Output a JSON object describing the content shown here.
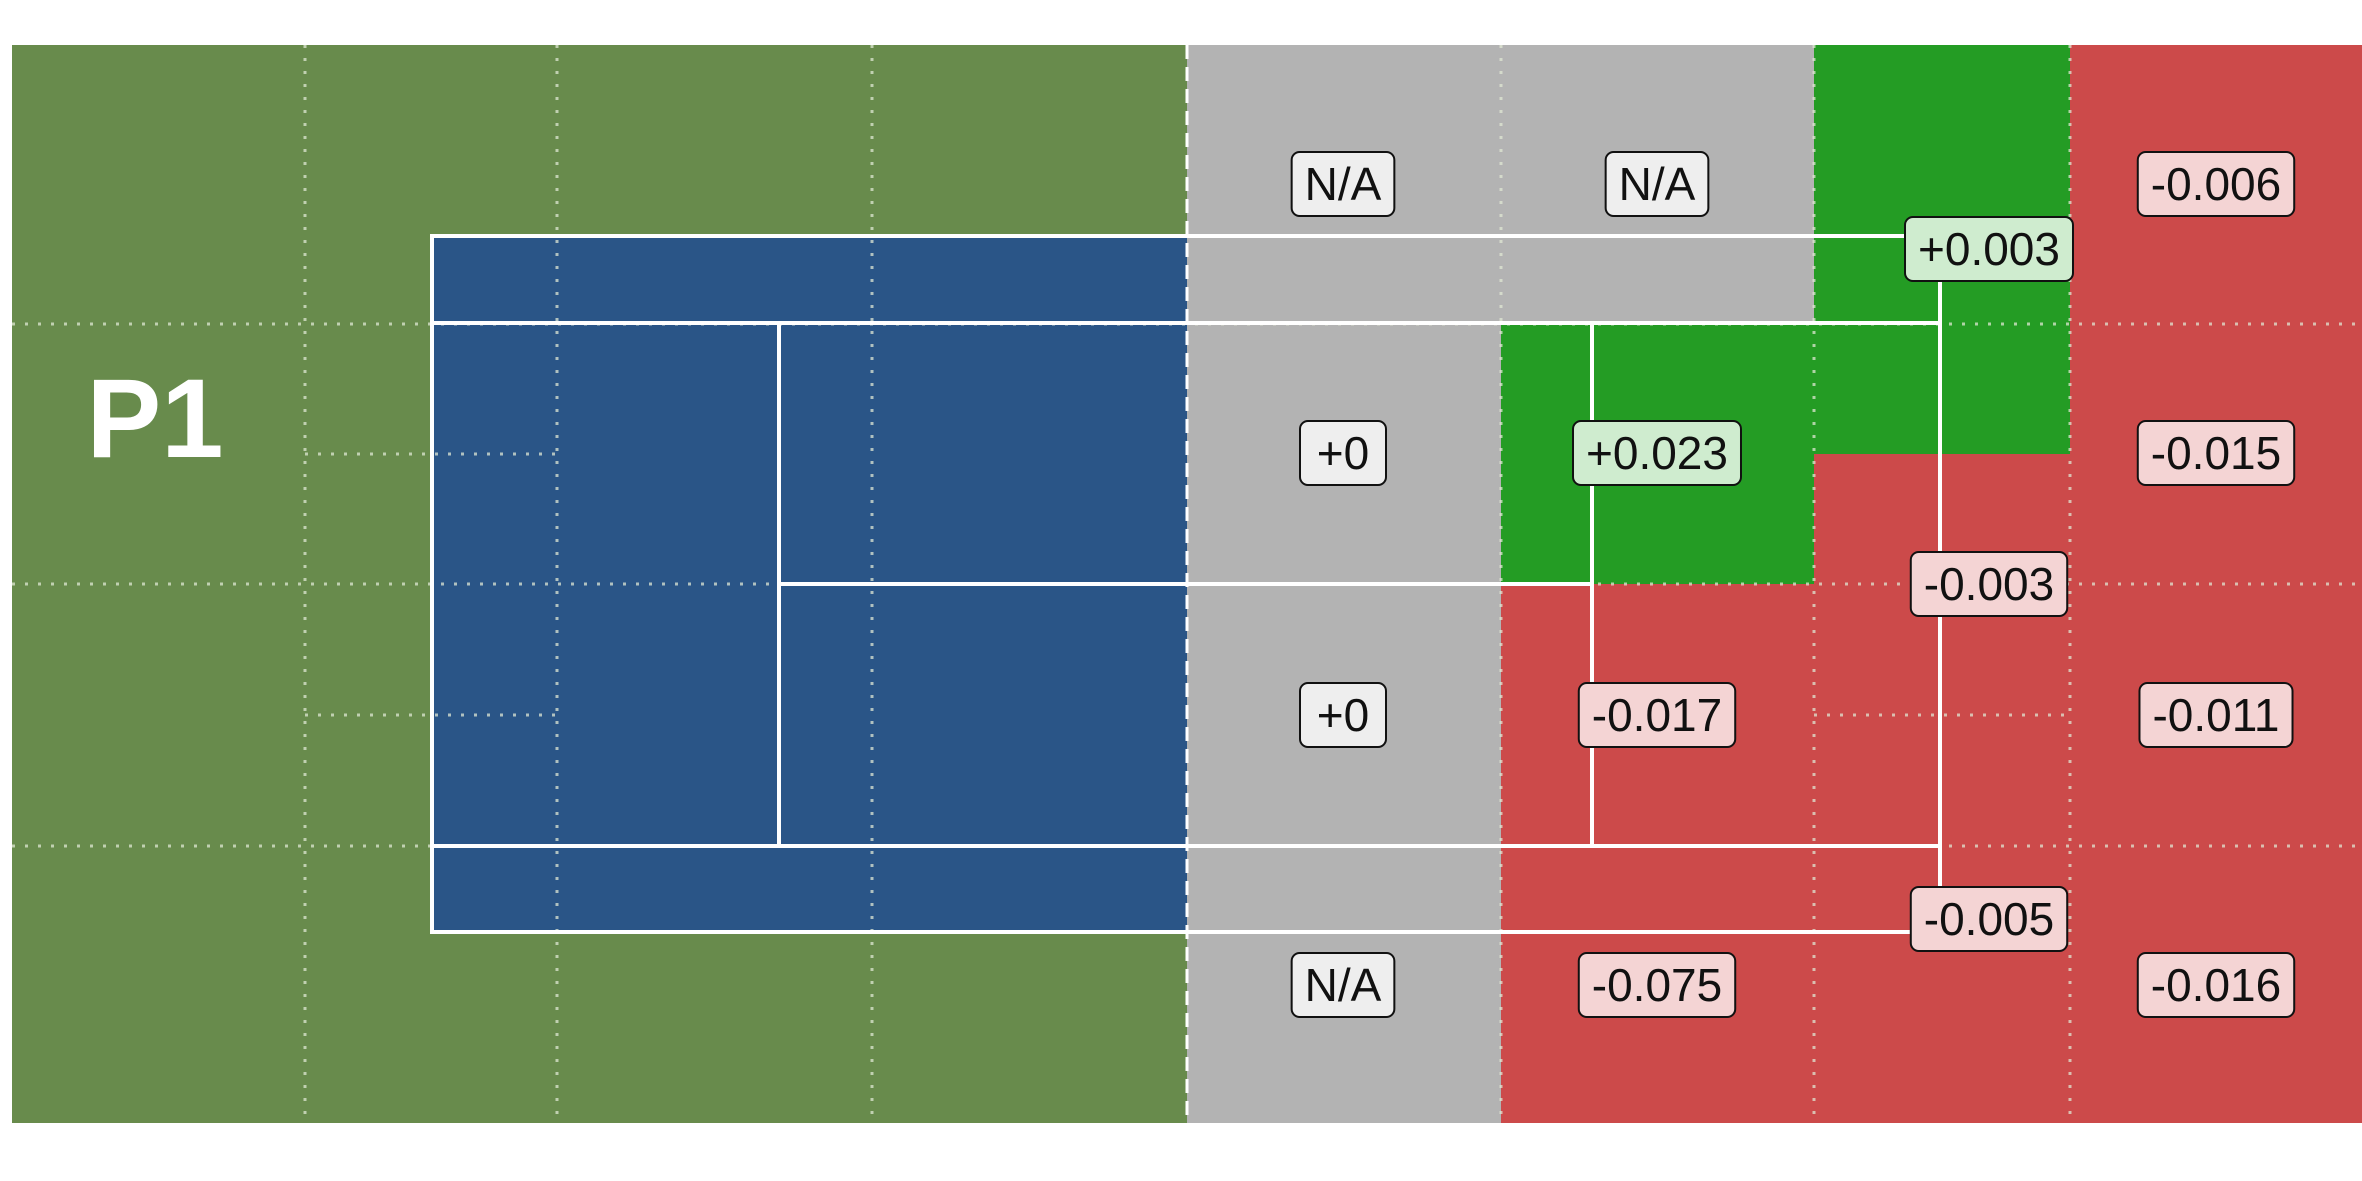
{
  "player_label": "P1",
  "colors": {
    "outer_green": "#688b4c",
    "court_blue": "#2a5587",
    "neutral_grey": "#b3b3b3",
    "positive_green": "#249c24",
    "negative_red": "#cc4a4a",
    "line_white": "#ffffff",
    "label_bg_neutral": "#eeeeee",
    "label_bg_positive": "#cfeccf",
    "label_bg_negative": "#f4d4d4"
  },
  "zones": [
    {
      "id": "gray-top-1",
      "label": "N/A",
      "tone": "neutral"
    },
    {
      "id": "gray-top-2",
      "label": "N/A",
      "tone": "neutral"
    },
    {
      "id": "right-top",
      "label": "-0.006",
      "tone": "negative"
    },
    {
      "id": "alley-top",
      "label": "+0.003",
      "tone": "positive"
    },
    {
      "id": "gray-mid-1",
      "label": "+0",
      "tone": "neutral"
    },
    {
      "id": "green-service",
      "label": "+0.023",
      "tone": "positive"
    },
    {
      "id": "right-mid-1",
      "label": "-0.015",
      "tone": "negative"
    },
    {
      "id": "baseline-mid",
      "label": "-0.003",
      "tone": "negative"
    },
    {
      "id": "gray-mid-2",
      "label": "+0",
      "tone": "neutral"
    },
    {
      "id": "red-service",
      "label": "-0.017",
      "tone": "negative"
    },
    {
      "id": "right-mid-2",
      "label": "-0.011",
      "tone": "negative"
    },
    {
      "id": "alley-bottom",
      "label": "-0.005",
      "tone": "negative"
    },
    {
      "id": "gray-bottom",
      "label": "N/A",
      "tone": "neutral"
    },
    {
      "id": "red-bottom",
      "label": "-0.075",
      "tone": "negative"
    },
    {
      "id": "right-bottom",
      "label": "-0.016",
      "tone": "negative"
    }
  ]
}
